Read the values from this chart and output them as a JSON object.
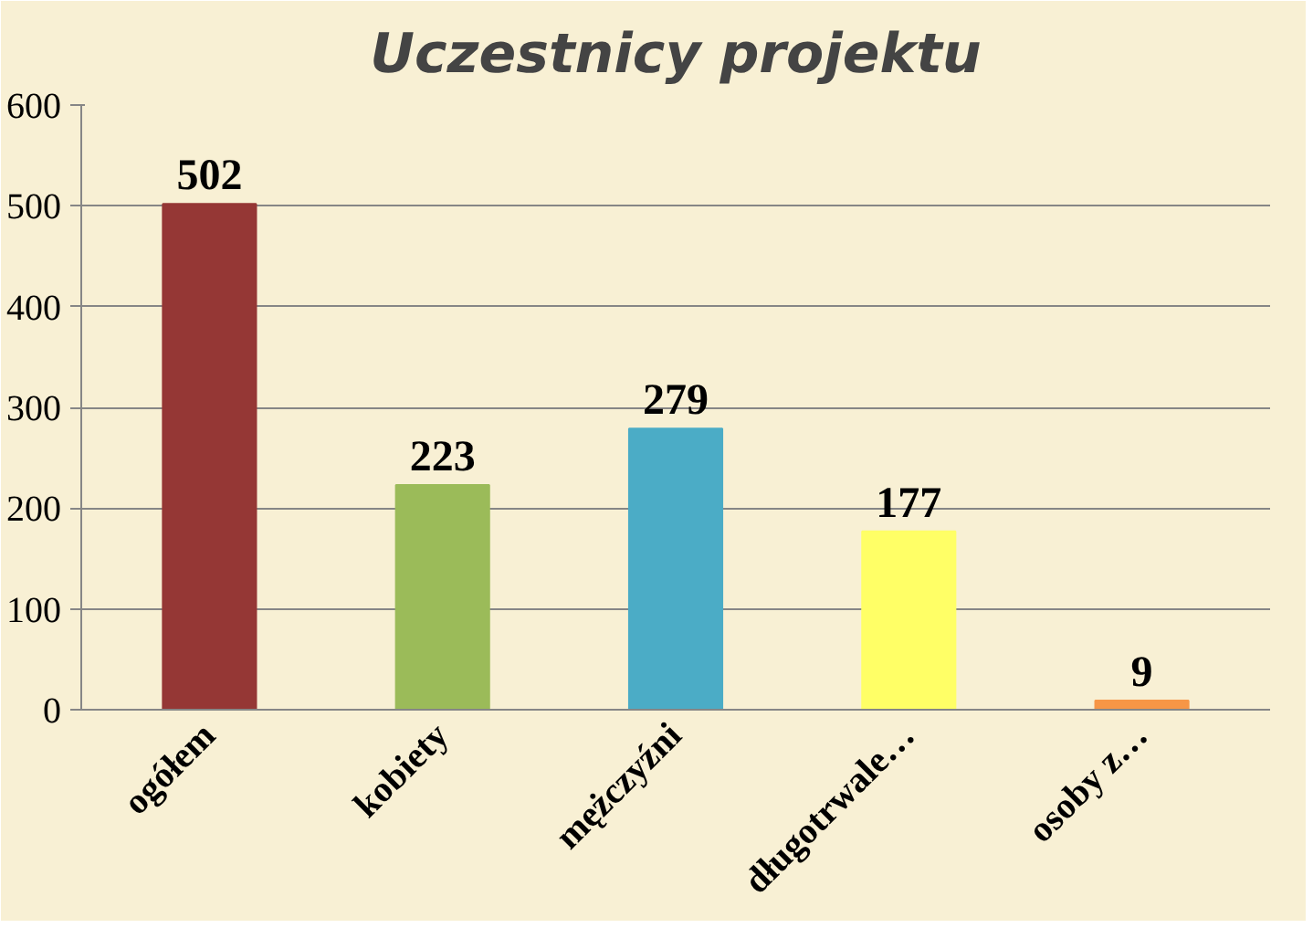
{
  "chart_data": {
    "type": "bar",
    "title": "Uczestnicy projektu",
    "categories": [
      "ogółem",
      "kobiety",
      "mężczyźni",
      "długotrwale…",
      "osoby z…"
    ],
    "values": [
      502,
      223,
      279,
      177,
      9
    ],
    "colors": [
      "#953735",
      "#9bbb59",
      "#4bacc6",
      "#ffff66",
      "#f79646"
    ],
    "ylim": [
      0,
      600
    ],
    "yticks": [
      0,
      100,
      200,
      300,
      400,
      500,
      600
    ],
    "grid": "y",
    "data_labels": true
  }
}
